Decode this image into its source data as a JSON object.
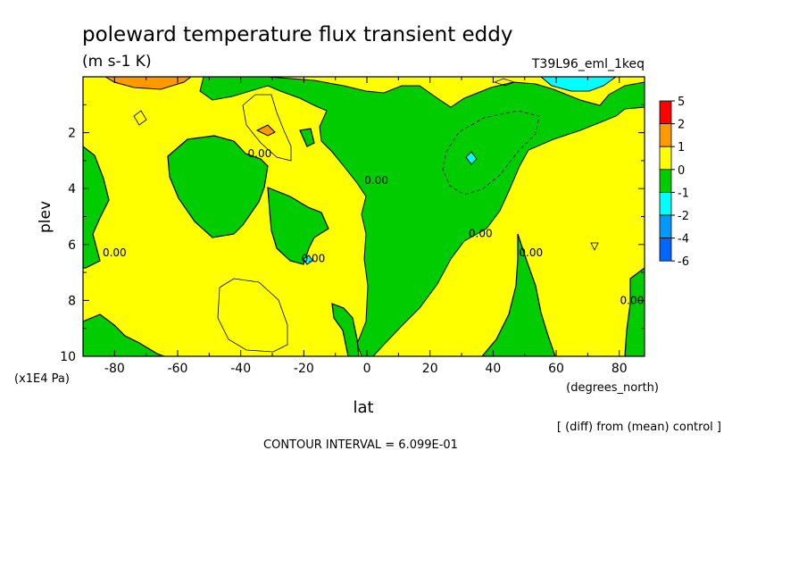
{
  "chart_data": {
    "type": "heatmap",
    "title": "poleward temperature flux transient eddy",
    "units": "(m s-1 K)",
    "run_label": "T39L96_eml_1keq",
    "xlabel": "lat",
    "x_unit_label": "(degrees_north)",
    "ylabel": "plev",
    "y_unit_label": "(x1E4 Pa)",
    "xlim": [
      -90,
      88
    ],
    "ylim": [
      10,
      0
    ],
    "x_ticks": [
      -80,
      -60,
      -40,
      -20,
      0,
      20,
      40,
      60,
      80
    ],
    "y_ticks": [
      2,
      4,
      6,
      8,
      10
    ],
    "colorbar": {
      "labels": [
        "5",
        "2",
        "1",
        "0",
        "-1",
        "-2",
        "-4",
        "-6"
      ],
      "colors": [
        "#ff0000",
        "#ff9900",
        "#ffff00",
        "#00cc00",
        "#00ffff",
        "#0099ff",
        "#0066ff"
      ]
    },
    "contour_labels": [
      {
        "text": "0.00",
        "lat": -34,
        "plev": 2.75
      },
      {
        "text": "0.00",
        "lat": 3,
        "plev": 3.7
      },
      {
        "text": "0.00",
        "lat": 36,
        "plev": 5.6
      },
      {
        "text": "0.00",
        "lat": 52,
        "plev": 6.3
      },
      {
        "text": "0.00",
        "lat": -80,
        "plev": 6.3
      },
      {
        "text": "0.00",
        "lat": -17,
        "plev": 6.5
      },
      {
        "text": "0.00",
        "lat": 84,
        "plev": 8.0
      }
    ],
    "grid": false,
    "legend": "right",
    "footer_note": "[ (diff) from (mean) control ]",
    "contour_interval_label": "CONTOUR INTERVAL = 6.099E-01"
  }
}
